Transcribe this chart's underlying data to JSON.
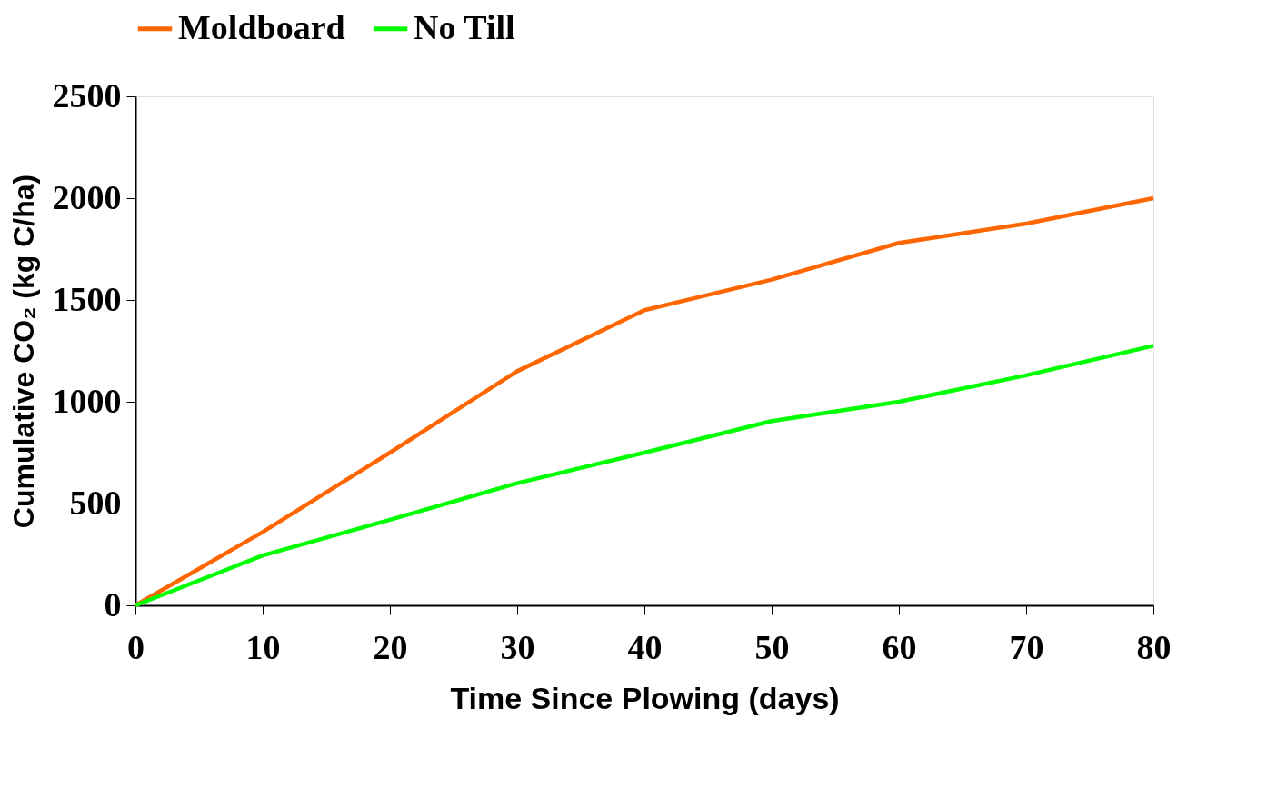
{
  "chart_data": {
    "type": "line",
    "xlabel": "Time Since Plowing (days)",
    "ylabel": "Cumulative CO₂ (kg C/ha)",
    "x": [
      0,
      10,
      20,
      30,
      40,
      50,
      60,
      70,
      80
    ],
    "series": [
      {
        "name": "Moldboard",
        "color": "#ff6600",
        "values": [
          0,
          360,
          750,
          1150,
          1450,
          1600,
          1780,
          1875,
          2000
        ]
      },
      {
        "name": "No Till",
        "color": "#00ff00",
        "values": [
          0,
          245,
          420,
          600,
          750,
          905,
          1000,
          1130,
          1275
        ]
      }
    ],
    "xlim": [
      0,
      80
    ],
    "xticks": [
      0,
      10,
      20,
      30,
      40,
      50,
      60,
      70,
      80
    ],
    "ylim": [
      0,
      2500
    ],
    "yticks": [
      0,
      500,
      1000,
      1500,
      2000,
      2500
    ],
    "legend": "top",
    "grid": false,
    "marker": "none",
    "line_style": "solid"
  }
}
